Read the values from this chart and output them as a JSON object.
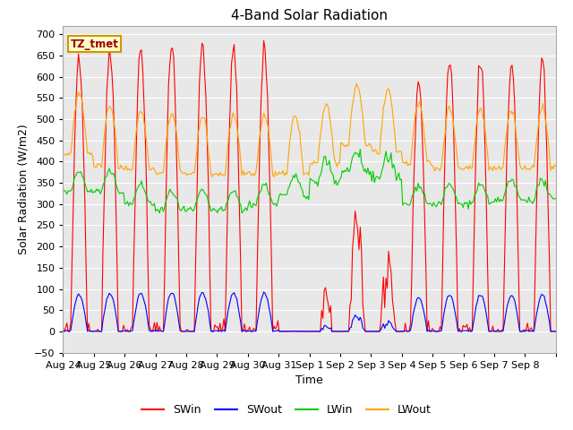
{
  "title": "4-Band Solar Radiation",
  "xlabel": "Time",
  "ylabel": "Solar Radiation (W/m2)",
  "ylim": [
    -50,
    720
  ],
  "annotation_text": "TZ_tmet",
  "annotation_box_color": "#ffffcc",
  "annotation_border_color": "#cc9900",
  "annotation_text_color": "#990000",
  "colors": {
    "SWin": "#ff0000",
    "SWout": "#0000ff",
    "LWin": "#00cc00",
    "LWout": "#ffa500"
  },
  "background_color": "#ffffff",
  "plot_bg_color": "#e8e8e8",
  "grid_color": "#ffffff",
  "n_days": 16,
  "lwin_base": [
    330,
    330,
    300,
    285,
    285,
    285,
    300,
    320,
    350,
    370,
    355,
    300,
    300,
    300,
    310,
    310
  ],
  "lwout_base": [
    420,
    390,
    380,
    375,
    370,
    370,
    370,
    370,
    395,
    440,
    425,
    395,
    385,
    385,
    385,
    385
  ],
  "swin_peaks": [
    655,
    672,
    671,
    680,
    680,
    675,
    665,
    0,
    105,
    260,
    130,
    590,
    640,
    640,
    635,
    630
  ],
  "swout_ratio": 0.135
}
